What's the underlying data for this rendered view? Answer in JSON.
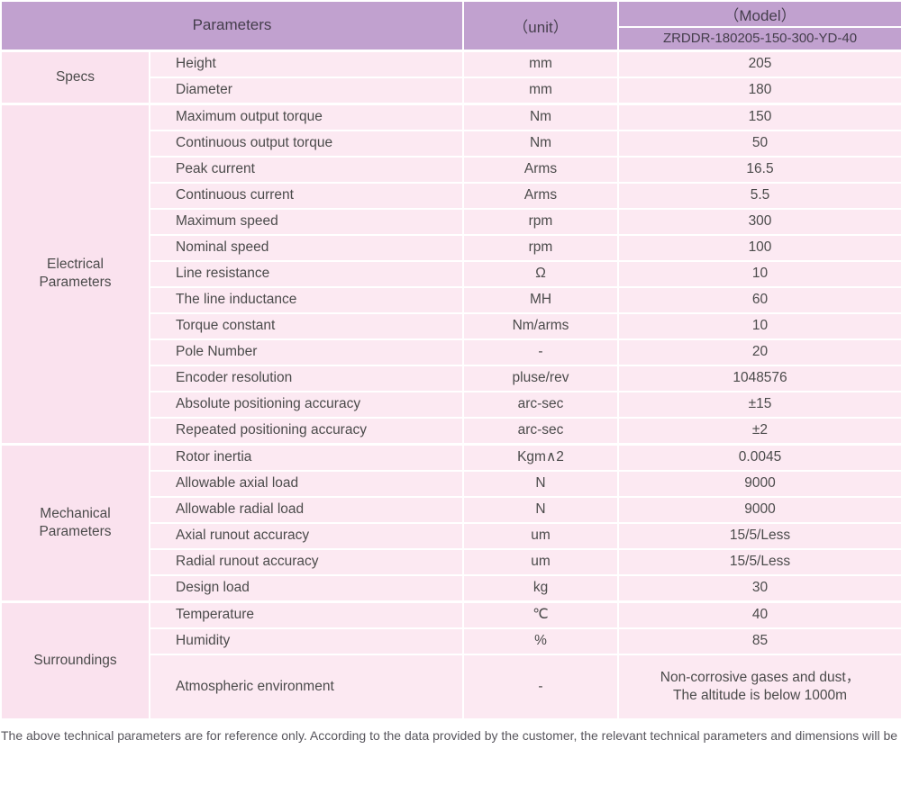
{
  "header": {
    "parameters_label": "Parameters",
    "unit_label": "（unit）",
    "model_label": "（Model）",
    "model_value": "ZRDDR-180205-150-300-YD-40"
  },
  "colors": {
    "header_bg": "#c1a1cf",
    "group_bg": "#fae2ee",
    "cell_bg": "#fce9f2",
    "text": "#4b4b4b"
  },
  "groups": [
    {
      "label": "Specs",
      "rows": [
        {
          "parameter": "Height",
          "unit": "mm",
          "value": "205"
        },
        {
          "parameter": "Diameter",
          "unit": "mm",
          "value": "180"
        }
      ]
    },
    {
      "label": "Electrical\nParameters",
      "rows": [
        {
          "parameter": "Maximum output torque",
          "unit": "Nm",
          "value": "150"
        },
        {
          "parameter": "Continuous output torque",
          "unit": "Nm",
          "value": "50"
        },
        {
          "parameter": "Peak current",
          "unit": "Arms",
          "value": "16.5"
        },
        {
          "parameter": "Continuous current",
          "unit": "Arms",
          "value": "5.5"
        },
        {
          "parameter": "Maximum speed",
          "unit": "rpm",
          "value": "300"
        },
        {
          "parameter": "Nominal speed",
          "unit": "rpm",
          "value": "100"
        },
        {
          "parameter": "Line resistance",
          "unit": "Ω",
          "value": "10"
        },
        {
          "parameter": "The line inductance",
          "unit": "MH",
          "value": "60"
        },
        {
          "parameter": "Torque constant",
          "unit": "Nm/arms",
          "value": "10"
        },
        {
          "parameter": "Pole Number",
          "unit": "-",
          "value": "20"
        },
        {
          "parameter": "Encoder resolution",
          "unit": "pluse/rev",
          "value": "1048576"
        },
        {
          "parameter": "Absolute positioning accuracy",
          "unit": "arc-sec",
          "value": "±15"
        },
        {
          "parameter": "Repeated positioning accuracy",
          "unit": "arc-sec",
          "value": "±2"
        }
      ]
    },
    {
      "label": "Mechanical\nParameters",
      "rows": [
        {
          "parameter": "Rotor inertia",
          "unit": "Kgm∧2",
          "value": "0.0045"
        },
        {
          "parameter": "Allowable axial load",
          "unit": "N",
          "value": "9000"
        },
        {
          "parameter": "Allowable radial load",
          "unit": "N",
          "value": "9000"
        },
        {
          "parameter": "Axial runout accuracy",
          "unit": "um",
          "value": "15/5/Less"
        },
        {
          "parameter": "Radial runout accuracy",
          "unit": "um",
          "value": "15/5/Less"
        },
        {
          "parameter": "Design load",
          "unit": "kg",
          "value": "30"
        }
      ]
    },
    {
      "label": "Surroundings",
      "rows": [
        {
          "parameter": "Temperature",
          "unit": "℃",
          "value": "40"
        },
        {
          "parameter": "Humidity",
          "unit": "%",
          "value": "85"
        },
        {
          "parameter": "Atmospheric environment",
          "unit": "-",
          "value": "Non-corrosive gases and dust，\nThe altitude is below 1000m"
        }
      ]
    }
  ],
  "footnote": "The above technical parameters are for reference only. According to the data provided by the customer, the relevant technical parameters and dimensions will be issued."
}
